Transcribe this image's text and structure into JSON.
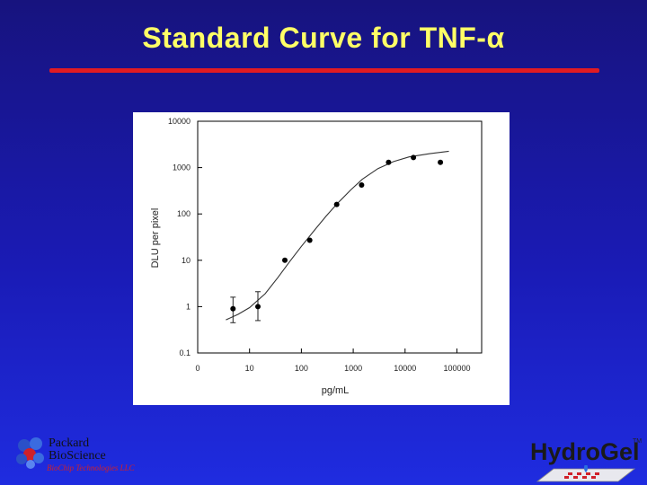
{
  "slide": {
    "title": "Standard Curve for TNF-α"
  },
  "logos": {
    "left_line1": "Packard",
    "left_line2": "BioScience",
    "left_line3": "BioChip Technologies LLC",
    "right_brand": "HydroGel",
    "right_tm": "TM"
  },
  "colors": {
    "background": "#1a1bb5",
    "title": "#ffff66",
    "rule": "#e11b22",
    "panel": "#ffffff"
  },
  "chart_data": {
    "type": "scatter",
    "xlabel": "pg/mL",
    "ylabel": "DLU per pixel",
    "x_scale": "log",
    "y_scale": "log",
    "x_tick_labels": [
      "0",
      "10",
      "100",
      "1000",
      "10000",
      "100000"
    ],
    "x_tick_values": [
      1,
      10,
      100,
      1000,
      10000,
      100000
    ],
    "y_tick_labels": [
      "0.1",
      "1",
      "10",
      "100",
      "1000",
      "10000"
    ],
    "y_tick_values": [
      0.1,
      1,
      10,
      100,
      1000,
      10000
    ],
    "xlim": [
      1,
      300000
    ],
    "ylim": [
      0.1,
      10000
    ],
    "grid": false,
    "points": [
      {
        "x": 4.8,
        "y": 0.9,
        "y_low": 0.45,
        "y_high": 1.6
      },
      {
        "x": 14.5,
        "y": 1.0,
        "y_low": 0.5,
        "y_high": 2.1
      },
      {
        "x": 48,
        "y": 10
      },
      {
        "x": 145,
        "y": 27
      },
      {
        "x": 480,
        "y": 160
      },
      {
        "x": 1450,
        "y": 420
      },
      {
        "x": 4800,
        "y": 1300
      },
      {
        "x": 14500,
        "y": 1650
      },
      {
        "x": 48000,
        "y": 1300
      }
    ],
    "fit_curve": [
      {
        "x": 3.5,
        "y": 0.52
      },
      {
        "x": 6,
        "y": 0.68
      },
      {
        "x": 10,
        "y": 0.95
      },
      {
        "x": 20,
        "y": 1.9
      },
      {
        "x": 35,
        "y": 4.2
      },
      {
        "x": 60,
        "y": 9.5
      },
      {
        "x": 100,
        "y": 20
      },
      {
        "x": 180,
        "y": 45
      },
      {
        "x": 300,
        "y": 90
      },
      {
        "x": 500,
        "y": 170
      },
      {
        "x": 900,
        "y": 330
      },
      {
        "x": 1500,
        "y": 560
      },
      {
        "x": 3000,
        "y": 950
      },
      {
        "x": 6000,
        "y": 1350
      },
      {
        "x": 12000,
        "y": 1700
      },
      {
        "x": 30000,
        "y": 2000
      },
      {
        "x": 70000,
        "y": 2250
      }
    ]
  }
}
